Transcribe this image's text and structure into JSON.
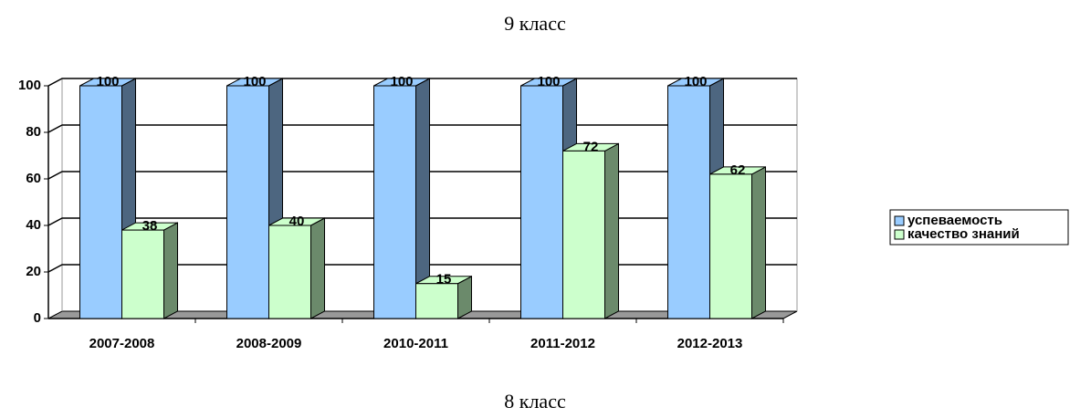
{
  "chart_data": {
    "type": "bar3d",
    "title": "9 класс",
    "categories": [
      "2007-2008",
      "2008-2009",
      "2010-2011",
      "2011-2012",
      "2012-2013"
    ],
    "series": [
      {
        "name": "успеваемость",
        "color": "#99ccff",
        "side": "#4d6680",
        "values": [
          100,
          100,
          100,
          100,
          100
        ]
      },
      {
        "name": "качество знаний",
        "color": "#ccffcc",
        "side": "#6b8a6b",
        "values": [
          38,
          40,
          15,
          72,
          62
        ]
      }
    ],
    "ylim": [
      0,
      100
    ],
    "yticks": [
      0,
      20,
      40,
      60,
      80,
      100
    ],
    "grid": true,
    "legend": "right"
  },
  "next_title": "8 класс"
}
